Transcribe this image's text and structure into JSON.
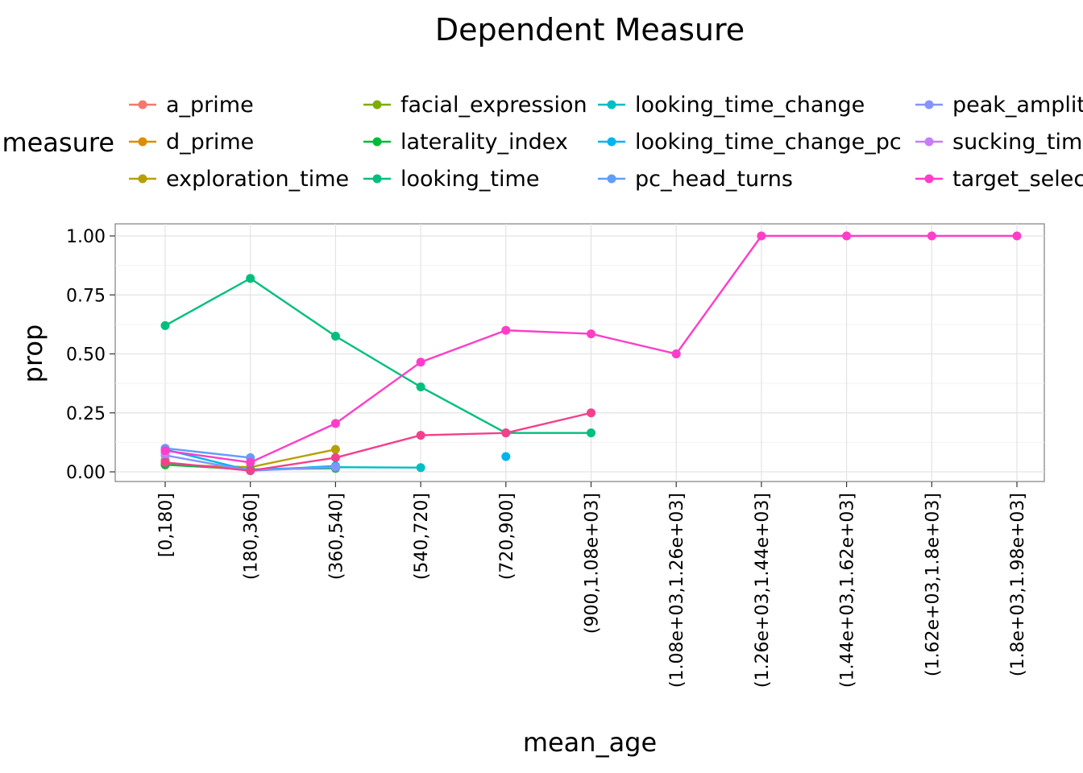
{
  "chart_data": {
    "type": "line",
    "title": "Dependent Measure",
    "xlabel": "mean_age",
    "ylabel": "prop",
    "ylim": [
      0,
      1
    ],
    "yticks": [
      "0.00",
      "0.25",
      "0.50",
      "0.75",
      "1.00"
    ],
    "grid": true,
    "legend_title": "measure",
    "legend_position": "top",
    "categories": [
      "[0,180]",
      "(180,360]",
      "(360,540]",
      "(540,720]",
      "(720,900]",
      "(900,1.08e+03]",
      "(1.08e+03,1.26e+03]",
      "(1.26e+03,1.44e+03]",
      "(1.44e+03,1.62e+03]",
      "(1.62e+03,1.8e+03]",
      "(1.8e+03,1.98e+03]"
    ],
    "legend_columns": [
      [
        "a_prime",
        "d_prime",
        "exploration_time"
      ],
      [
        "facial_expression",
        "laterality_index",
        "looking_time"
      ],
      [
        "looking_time_change",
        "looking_time_change_pc",
        "pc_head_turns"
      ],
      [
        "peak_amplitude",
        "sucking_time",
        "target_selection"
      ]
    ],
    "series": [
      {
        "name": "a_prime",
        "color": "#F8766D",
        "values": [
          0.04,
          null,
          null,
          null,
          null,
          null,
          null,
          null,
          null,
          null,
          null
        ]
      },
      {
        "name": "d_prime",
        "color": "#DE8C00",
        "values": [
          0.05,
          null,
          null,
          null,
          null,
          null,
          null,
          null,
          null,
          null,
          null
        ]
      },
      {
        "name": "exploration_time",
        "color": "#B79F00",
        "values": [
          0.03,
          0.02,
          0.095,
          null,
          null,
          null,
          null,
          null,
          null,
          null,
          null
        ]
      },
      {
        "name": "facial_expression",
        "color": "#7CAE00",
        "values": [
          0.03,
          null,
          null,
          null,
          null,
          null,
          null,
          null,
          null,
          null,
          null
        ]
      },
      {
        "name": "laterality_index",
        "color": "#00BA38",
        "values": [
          0.03,
          0.01,
          0.015,
          null,
          null,
          null,
          null,
          null,
          null,
          null,
          null
        ]
      },
      {
        "name": "looking_time",
        "color": "#00BF7D",
        "values": [
          0.62,
          0.82,
          0.575,
          0.36,
          0.165,
          0.165,
          null,
          null,
          null,
          null,
          null
        ]
      },
      {
        "name": "looking_time_change",
        "color": "#00BFC4",
        "values": [
          null,
          0.01,
          0.02,
          0.018,
          null,
          null,
          null,
          null,
          null,
          null,
          null
        ]
      },
      {
        "name": "looking_time_change_pc",
        "color": "#00B4F0",
        "values": [
          0.095,
          0.005,
          0.025,
          null,
          0.065,
          null,
          0.5,
          null,
          null,
          null,
          null
        ]
      },
      {
        "name": "pc_head_turns",
        "color": "#619CFF",
        "values": [
          0.1,
          0.06,
          null,
          null,
          null,
          null,
          null,
          null,
          null,
          null,
          null
        ]
      },
      {
        "name": "peak_amplitude",
        "color": "#8494FF",
        "values": [
          0.07,
          0.005,
          0.02,
          null,
          null,
          null,
          null,
          null,
          null,
          null,
          null
        ]
      },
      {
        "name": "sucking_time",
        "color": "#C77CFF",
        "values": [
          0.08,
          null,
          null,
          null,
          null,
          null,
          null,
          null,
          null,
          null,
          null
        ]
      },
      {
        "name": "target_selection",
        "color": "#FF3DC8",
        "values": [
          0.09,
          0.04,
          0.205,
          0.465,
          0.6,
          0.585,
          0.5,
          1.0,
          1.0,
          1.0,
          1.0
        ]
      },
      {
        "name": "target_selection",
        "color": "#F2408C",
        "values": [
          0.04,
          0.005,
          0.06,
          0.155,
          0.165,
          0.25,
          null,
          null,
          null,
          null,
          null
        ]
      }
    ]
  }
}
